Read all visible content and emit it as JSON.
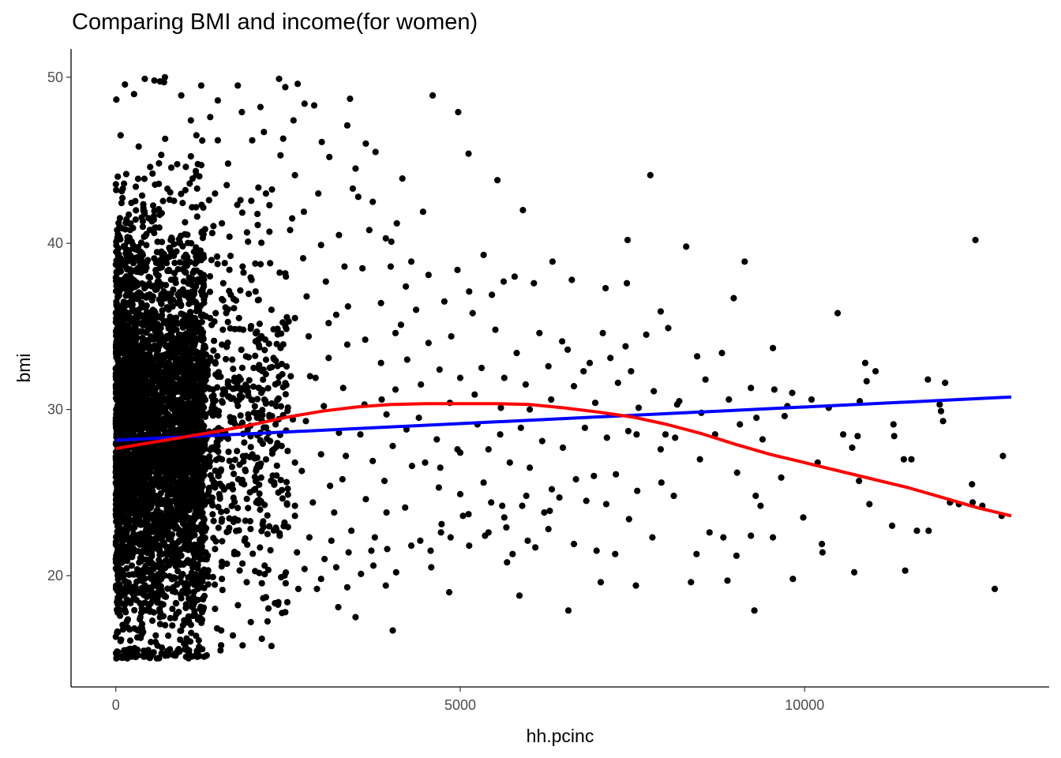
{
  "chart_data": {
    "type": "scatter",
    "title": "Comparing BMI and income(for women)",
    "xlabel": "hh.pcinc",
    "ylabel": "bmi",
    "xlim": [
      -650,
      13550
    ],
    "ylim": [
      13.3,
      51.7
    ],
    "x_ticks": [
      0,
      5000,
      10000
    ],
    "x_tick_labels": [
      "0",
      "5000",
      "10000"
    ],
    "y_ticks": [
      20,
      30,
      40,
      50
    ],
    "y_tick_labels": [
      "20",
      "30",
      "40",
      "50"
    ],
    "grid": false,
    "legend": "none",
    "colors": {
      "points": "#000000",
      "linear_fit": "#0000ff",
      "loess_fit": "#ff0000",
      "axis": "#000000"
    },
    "points": [
      [
        420,
        49.9
      ],
      [
        560,
        49.8
      ],
      [
        700,
        49.7
      ],
      [
        2370,
        49.9
      ],
      [
        2640,
        49.6
      ],
      [
        1770,
        49.5
      ],
      [
        1480,
        48.6
      ],
      [
        3400,
        48.7
      ],
      [
        4600,
        48.9
      ],
      [
        2740,
        48.4
      ],
      [
        2880,
        48.3
      ],
      [
        4970,
        47.9
      ],
      [
        1830,
        47.9
      ],
      [
        1090,
        47.4
      ],
      [
        3360,
        47.1
      ],
      [
        2430,
        46.3
      ],
      [
        3630,
        46.0
      ],
      [
        1980,
        46.2
      ],
      [
        5120,
        45.4
      ],
      [
        3100,
        45.2
      ],
      [
        3480,
        44.5
      ],
      [
        7760,
        44.1
      ],
      [
        5540,
        43.8
      ],
      [
        1610,
        43.5
      ],
      [
        3440,
        43.3
      ],
      [
        2180,
        43.0
      ],
      [
        1010,
        43.2
      ],
      [
        3520,
        42.8
      ],
      [
        3730,
        42.5
      ],
      [
        5910,
        42.0
      ],
      [
        2560,
        41.5
      ],
      [
        4080,
        41.2
      ],
      [
        3680,
        40.8
      ],
      [
        2230,
        40.7
      ],
      [
        4000,
        40.1
      ],
      [
        7430,
        40.2
      ],
      [
        12480,
        40.2
      ],
      [
        8280,
        39.8
      ],
      [
        5340,
        39.3
      ],
      [
        9130,
        38.9
      ],
      [
        6340,
        38.9
      ],
      [
        5790,
        38.0
      ],
      [
        6070,
        37.6
      ],
      [
        6620,
        37.8
      ],
      [
        7110,
        37.3
      ],
      [
        7420,
        37.6
      ],
      [
        8970,
        36.7
      ],
      [
        10480,
        35.8
      ],
      [
        7910,
        35.9
      ],
      [
        9540,
        33.7
      ],
      [
        10880,
        32.8
      ],
      [
        11030,
        32.3
      ],
      [
        11790,
        31.8
      ],
      [
        12040,
        31.6
      ],
      [
        9820,
        31.0
      ],
      [
        10100,
        30.6
      ],
      [
        11960,
        30.3
      ],
      [
        12010,
        29.3
      ],
      [
        11290,
        29.1
      ],
      [
        7980,
        28.5
      ],
      [
        10770,
        28.4
      ],
      [
        10690,
        27.7
      ],
      [
        10190,
        26.8
      ],
      [
        11440,
        27.0
      ],
      [
        12880,
        27.2
      ],
      [
        9020,
        26.2
      ],
      [
        9660,
        25.9
      ],
      [
        10790,
        25.7
      ],
      [
        12430,
        25.5
      ],
      [
        7920,
        25.6
      ],
      [
        8100,
        24.8
      ],
      [
        7570,
        25.1
      ],
      [
        9360,
        24.2
      ],
      [
        10940,
        24.3
      ],
      [
        9290,
        24.8
      ],
      [
        12110,
        24.4
      ],
      [
        9980,
        23.5
      ],
      [
        8620,
        22.6
      ],
      [
        8820,
        22.3
      ],
      [
        9220,
        22.4
      ],
      [
        11270,
        23.0
      ],
      [
        11630,
        22.7
      ],
      [
        11800,
        22.7
      ],
      [
        9540,
        22.3
      ],
      [
        9010,
        21.2
      ],
      [
        8430,
        21.3
      ],
      [
        10250,
        21.9
      ],
      [
        10260,
        21.4
      ],
      [
        10720,
        20.2
      ],
      [
        11460,
        20.3
      ],
      [
        12580,
        24.2
      ],
      [
        12760,
        19.2
      ],
      [
        8880,
        19.7
      ],
      [
        9830,
        19.8
      ],
      [
        8350,
        19.6
      ],
      [
        9270,
        17.9
      ],
      [
        6570,
        17.9
      ],
      [
        7040,
        19.6
      ],
      [
        7550,
        19.4
      ],
      [
        6090,
        21.7
      ],
      [
        5680,
        20.8
      ],
      [
        5760,
        21.3
      ],
      [
        5860,
        18.8
      ],
      [
        4840,
        19.0
      ],
      [
        4580,
        20.5
      ],
      [
        4020,
        16.7
      ],
      [
        3920,
        19.4
      ],
      [
        3230,
        18.1
      ],
      [
        3480,
        17.5
      ],
      [
        3360,
        19.3
      ],
      [
        2920,
        19.2
      ],
      [
        2490,
        18.4
      ],
      [
        2360,
        18.4
      ],
      [
        2120,
        16.2
      ],
      [
        1840,
        15.8
      ],
      [
        3710,
        21.5
      ],
      [
        3940,
        21.6
      ],
      [
        4420,
        22.1
      ],
      [
        4720,
        22.6
      ],
      [
        5120,
        23.7
      ],
      [
        5450,
        24.4
      ],
      [
        5900,
        24.2
      ],
      [
        6220,
        23.8
      ],
      [
        6440,
        24.7
      ],
      [
        6830,
        24.5
      ],
      [
        7120,
        24.3
      ],
      [
        7450,
        23.4
      ],
      [
        7790,
        22.3
      ],
      [
        4200,
        24.1
      ],
      [
        3900,
        25.7
      ],
      [
        4300,
        26.6
      ],
      [
        4710,
        26.5
      ],
      [
        5000,
        27.4
      ],
      [
        5410,
        27.6
      ],
      [
        5720,
        26.8
      ],
      [
        6010,
        26.5
      ],
      [
        6330,
        25.2
      ],
      [
        6680,
        25.8
      ],
      [
        6940,
        26.0
      ],
      [
        7260,
        26.1
      ],
      [
        7560,
        28.5
      ],
      [
        7910,
        27.6
      ],
      [
        8120,
        28.3
      ],
      [
        8480,
        27.0
      ],
      [
        8700,
        28.5
      ],
      [
        9060,
        29.1
      ],
      [
        9390,
        28.2
      ],
      [
        9710,
        29.6
      ],
      [
        4400,
        29.5
      ],
      [
        4850,
        30.4
      ],
      [
        5210,
        30.9
      ],
      [
        5590,
        30.1
      ],
      [
        5950,
        31.5
      ],
      [
        6280,
        32.6
      ],
      [
        6560,
        33.6
      ],
      [
        6880,
        32.8
      ],
      [
        7180,
        33.1
      ],
      [
        7480,
        32.3
      ],
      [
        7810,
        31.1
      ],
      [
        8180,
        30.5
      ],
      [
        8560,
        31.8
      ],
      [
        8800,
        33.4
      ],
      [
        9220,
        31.3
      ],
      [
        9560,
        31.2
      ],
      [
        4230,
        33.0
      ],
      [
        4540,
        34.0
      ],
      [
        4870,
        34.4
      ],
      [
        5180,
        35.8
      ],
      [
        5510,
        34.8
      ],
      [
        5820,
        33.4
      ],
      [
        6150,
        34.6
      ],
      [
        6480,
        34.1
      ],
      [
        6790,
        32.3
      ],
      [
        7070,
        34.6
      ],
      [
        7400,
        33.8
      ],
      [
        7700,
        34.5
      ],
      [
        8020,
        34.9
      ],
      [
        8440,
        33.2
      ],
      [
        4360,
        36.0
      ],
      [
        4770,
        36.5
      ],
      [
        5130,
        37.1
      ],
      [
        5460,
        36.9
      ],
      [
        5630,
        37.7
      ],
      [
        4960,
        38.4
      ],
      [
        4540,
        38.1
      ],
      [
        4210,
        37.4
      ],
      [
        3990,
        38.6
      ],
      [
        3850,
        36.4
      ],
      [
        4140,
        35.1
      ],
      [
        3620,
        34.2
      ],
      [
        3850,
        32.8
      ],
      [
        4060,
        31.2
      ],
      [
        3610,
        30.3
      ],
      [
        3930,
        29.7
      ],
      [
        4220,
        28.8
      ],
      [
        3550,
        28.5
      ],
      [
        3340,
        27.2
      ],
      [
        3730,
        26.9
      ],
      [
        4020,
        27.8
      ],
      [
        3290,
        25.8
      ],
      [
        3630,
        24.6
      ],
      [
        3930,
        23.8
      ],
      [
        3170,
        23.8
      ],
      [
        3420,
        22.7
      ],
      [
        3760,
        22.3
      ],
      [
        3130,
        22.1
      ],
      [
        3380,
        21.4
      ],
      [
        3030,
        21.0
      ],
      [
        2740,
        20.4
      ],
      [
        2980,
        19.8
      ],
      [
        3200,
        20.5
      ],
      [
        3560,
        20.1
      ],
      [
        3740,
        20.6
      ],
      [
        4070,
        20.2
      ],
      [
        4290,
        21.8
      ],
      [
        4570,
        21.5
      ],
      [
        4860,
        22.3
      ],
      [
        5130,
        21.8
      ],
      [
        5410,
        22.6
      ],
      [
        5670,
        22.9
      ],
      [
        5980,
        22.1
      ],
      [
        6280,
        22.8
      ],
      [
        6650,
        21.9
      ],
      [
        6980,
        21.5
      ],
      [
        7250,
        21.3
      ],
      [
        2810,
        22.3
      ],
      [
        2600,
        23.6
      ],
      [
        2860,
        24.4
      ],
      [
        3110,
        25.4
      ],
      [
        2700,
        26.3
      ],
      [
        2980,
        27.3
      ],
      [
        3240,
        28.6
      ],
      [
        2760,
        29.3
      ],
      [
        3020,
        30.2
      ],
      [
        3300,
        31.3
      ],
      [
        2820,
        32.0
      ],
      [
        3090,
        33.1
      ],
      [
        3360,
        33.9
      ],
      [
        2800,
        34.4
      ],
      [
        3090,
        35.2
      ],
      [
        3370,
        36.2
      ],
      [
        2770,
        36.8
      ],
      [
        3050,
        37.7
      ],
      [
        3320,
        38.6
      ],
      [
        2720,
        39.1
      ],
      [
        2980,
        39.9
      ],
      [
        3240,
        40.5
      ],
      [
        2530,
        40.8
      ],
      [
        2730,
        41.9
      ],
      [
        2940,
        43.0
      ],
      [
        2600,
        44.1
      ],
      [
        2390,
        45.3
      ],
      [
        2230,
        42.3
      ],
      [
        2060,
        41.1
      ],
      [
        1920,
        40.1
      ],
      [
        2240,
        38.8
      ],
      [
        2470,
        38.0
      ],
      [
        2030,
        37.1
      ],
      [
        2260,
        36.0
      ],
      [
        2510,
        35.3
      ],
      [
        2030,
        34.1
      ],
      [
        2290,
        33.1
      ],
      [
        2540,
        32.0
      ],
      [
        2080,
        31.3
      ],
      [
        2330,
        30.2
      ],
      [
        2570,
        29.4
      ],
      [
        2100,
        28.6
      ],
      [
        2340,
        27.8
      ],
      [
        2600,
        26.8
      ],
      [
        2110,
        25.9
      ],
      [
        2360,
        25.0
      ],
      [
        2600,
        24.2
      ],
      [
        2130,
        23.1
      ],
      [
        2380,
        22.4
      ],
      [
        2630,
        21.4
      ],
      [
        2160,
        20.6
      ],
      [
        2400,
        19.9
      ],
      [
        2650,
        19.2
      ],
      [
        2180,
        18.7
      ],
      [
        2460,
        17.8
      ],
      [
        1960,
        17.2
      ],
      [
        1700,
        16.4
      ],
      [
        1520,
        15.5
      ],
      [
        1320,
        15.2
      ],
      [
        1900,
        19.6
      ],
      [
        1720,
        21.3
      ],
      [
        1880,
        23.3
      ],
      [
        1700,
        25.2
      ],
      [
        1890,
        27.2
      ],
      [
        1710,
        29.3
      ],
      [
        1870,
        31.2
      ],
      [
        1690,
        33.0
      ],
      [
        1850,
        34.8
      ],
      [
        1670,
        36.9
      ],
      [
        1840,
        38.6
      ],
      [
        1650,
        40.4
      ],
      [
        1810,
        42.6
      ],
      [
        1630,
        44.8
      ],
      [
        1480,
        46.2
      ],
      [
        1440,
        43.0
      ],
      [
        1540,
        41.2
      ],
      [
        1470,
        39.2
      ],
      [
        1560,
        37.6
      ],
      [
        1450,
        35.8
      ],
      [
        1540,
        33.9
      ],
      [
        1450,
        32.1
      ],
      [
        1540,
        30.5
      ],
      [
        1440,
        28.7
      ],
      [
        1540,
        27.0
      ],
      [
        1440,
        25.3
      ],
      [
        1540,
        23.4
      ],
      [
        1440,
        21.6
      ],
      [
        1540,
        19.8
      ],
      [
        1440,
        18.0
      ],
      [
        1530,
        16.7
      ],
      [
        5000,
        31.9
      ],
      [
        5310,
        32.5
      ],
      [
        5640,
        31.9
      ],
      [
        6010,
        30.0
      ],
      [
        6320,
        30.6
      ],
      [
        6650,
        31.4
      ],
      [
        6960,
        30.4
      ],
      [
        7290,
        31.6
      ],
      [
        7590,
        30.1
      ],
      [
        4700,
        32.4
      ],
      [
        4430,
        31.5
      ],
      [
        5250,
        29.1
      ],
      [
        5580,
        28.5
      ],
      [
        5880,
        28.9
      ],
      [
        6190,
        28.1
      ],
      [
        6490,
        27.7
      ],
      [
        6810,
        28.9
      ],
      [
        7130,
        28.3
      ],
      [
        7440,
        28.7
      ],
      [
        4660,
        28.2
      ],
      [
        4960,
        27.6
      ],
      [
        4690,
        25.3
      ],
      [
        5000,
        24.9
      ],
      [
        5340,
        25.6
      ],
      [
        5610,
        24.2
      ],
      [
        5960,
        24.8
      ],
      [
        6300,
        23.9
      ],
      [
        4730,
        23.1
      ],
      [
        5040,
        23.6
      ],
      [
        5360,
        22.4
      ],
      [
        5640,
        23.5
      ],
      [
        4490,
        26.8
      ],
      [
        12860,
        23.6
      ],
      [
        12440,
        24.4
      ],
      [
        12240,
        24.3
      ],
      [
        11980,
        29.9
      ],
      [
        11300,
        28.4
      ],
      [
        10560,
        28.5
      ],
      [
        11550,
        27.0
      ],
      [
        10900,
        31.7
      ],
      [
        8150,
        30.3
      ],
      [
        8500,
        29.8
      ],
      [
        8900,
        30.6
      ],
      [
        9300,
        29.5
      ],
      [
        9750,
        30.2
      ],
      [
        10350,
        30.1
      ],
      [
        10800,
        30.5
      ],
      [
        4060,
        34.6
      ],
      [
        3860,
        30.6
      ],
      [
        2900,
        31.9
      ],
      [
        3200,
        35.7
      ],
      [
        2600,
        35.5
      ],
      [
        3580,
        38.5
      ],
      [
        4290,
        38.9
      ],
      [
        3920,
        40.3
      ],
      [
        4460,
        41.9
      ],
      [
        4160,
        43.9
      ],
      [
        3770,
        45.5
      ],
      [
        2580,
        47.4
      ],
      [
        2990,
        46.1
      ],
      [
        2150,
        46.7
      ],
      [
        2100,
        48.2
      ],
      [
        1240,
        49.5
      ],
      [
        2460,
        49.4
      ],
      [
        1370,
        47.6
      ],
      [
        950,
        48.9
      ],
      [
        1170,
        46.5
      ]
    ],
    "dense_region": {
      "x_range": [
        0,
        1300
      ],
      "y_range": [
        15,
        50
      ],
      "approx_count": 3600,
      "center_x": 500,
      "center_y": 28.5
    },
    "linear_fit": {
      "name": "",
      "x": [
        0,
        13000
      ],
      "y": [
        28.15,
        30.75
      ]
    },
    "loess_fit": {
      "name": "",
      "x": [
        0,
        500,
        1000,
        1500,
        2000,
        2500,
        3000,
        3500,
        4000,
        4500,
        5000,
        5500,
        6000,
        6500,
        7000,
        7500,
        8000,
        8500,
        9000,
        9500,
        10000,
        10500,
        11000,
        11500,
        12000,
        12500,
        13000
      ],
      "y": [
        27.65,
        28.0,
        28.35,
        28.7,
        29.1,
        29.55,
        29.9,
        30.15,
        30.3,
        30.35,
        30.35,
        30.35,
        30.3,
        30.1,
        29.85,
        29.55,
        29.1,
        28.55,
        27.9,
        27.3,
        26.8,
        26.3,
        25.8,
        25.3,
        24.7,
        24.1,
        23.6
      ]
    }
  }
}
